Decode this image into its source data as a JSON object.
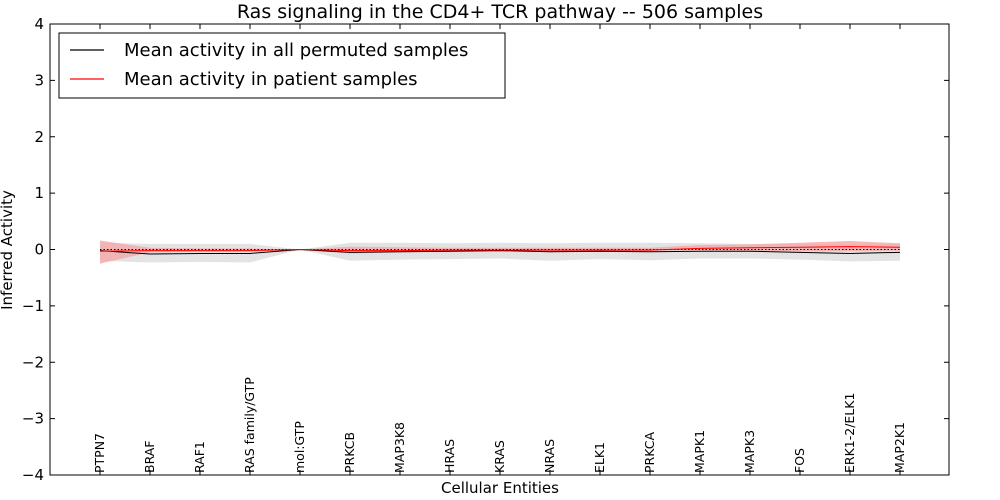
{
  "chart_data": {
    "type": "line",
    "title": "Ras signaling in the CD4+ TCR pathway -- 506 samples",
    "xlabel": "Cellular Entities",
    "ylabel": "Inferred Activity",
    "ylim": [
      -4,
      4
    ],
    "yticks": [
      -4,
      -3,
      -2,
      -1,
      0,
      1,
      2,
      3,
      4
    ],
    "ytick_labels": [
      "−4",
      "−3",
      "−2",
      "−1",
      "0",
      "1",
      "2",
      "3",
      "4"
    ],
    "categories": [
      "PTPN7",
      "BRAF",
      "RAF1",
      "RAS family/GTP",
      "mol:GTP",
      "PRKCB",
      "MAP3K8",
      "HRAS",
      "KRAS",
      "NRAS",
      "ELK1",
      "PRKCA",
      "MAPK1",
      "MAPK3",
      "FOS",
      "ERK1-2/ELK1",
      "MAP2K1"
    ],
    "legend_position": "upper-left",
    "series": [
      {
        "name": "Mean activity in all permuted samples",
        "color": "#000000",
        "values": [
          -0.02,
          -0.08,
          -0.07,
          -0.07,
          0.0,
          -0.05,
          -0.04,
          -0.03,
          -0.02,
          -0.04,
          -0.03,
          -0.04,
          -0.03,
          -0.03,
          -0.05,
          -0.07,
          -0.05
        ],
        "band_lower": [
          -0.2,
          -0.23,
          -0.22,
          -0.23,
          0.0,
          -0.2,
          -0.18,
          -0.17,
          -0.16,
          -0.2,
          -0.17,
          -0.19,
          -0.16,
          -0.16,
          -0.18,
          -0.21,
          -0.2
        ],
        "band_upper": [
          0.12,
          0.1,
          0.1,
          0.1,
          0.0,
          0.12,
          0.12,
          0.11,
          0.12,
          0.11,
          0.12,
          0.12,
          0.11,
          0.1,
          0.1,
          0.09,
          0.1
        ],
        "band_color": "#d9d9d9"
      },
      {
        "name": "Mean activity in patient samples",
        "color": "#ff0000",
        "values": [
          -0.03,
          -0.02,
          -0.02,
          -0.02,
          0.0,
          -0.02,
          -0.02,
          -0.01,
          -0.01,
          -0.01,
          -0.01,
          -0.01,
          0.02,
          0.03,
          0.04,
          0.05,
          0.04
        ],
        "band_lower": [
          -0.25,
          -0.05,
          -0.04,
          -0.04,
          0.0,
          -0.07,
          -0.05,
          -0.04,
          -0.03,
          -0.03,
          -0.03,
          -0.02,
          -0.01,
          -0.02,
          -0.03,
          -0.03,
          -0.02
        ],
        "band_upper": [
          0.16,
          0.03,
          0.02,
          0.02,
          0.0,
          0.05,
          0.04,
          0.03,
          0.03,
          0.03,
          0.03,
          0.03,
          0.08,
          0.09,
          0.12,
          0.15,
          0.11
        ],
        "band_color": "#f4a6a6"
      }
    ],
    "reference_line": {
      "y": 0,
      "style": "dotted",
      "color": "#000000"
    }
  }
}
